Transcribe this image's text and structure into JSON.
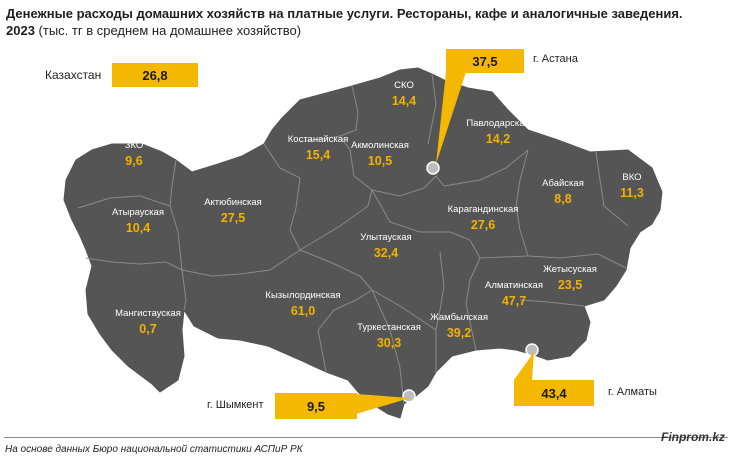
{
  "title": {
    "line1": "Денежные расходы домашних хозяйств на платные услуги. Рестораны, кафе и аналогичные заведения.",
    "line2_bold": "2023",
    "line2_rest": " (тыс. тг в среднем на домашнее хозяйство)"
  },
  "country": {
    "label": "Казахстан",
    "value": "26,8"
  },
  "cities": {
    "astana": {
      "label": "г. Астана",
      "value": "37,5"
    },
    "almaty": {
      "label": "г. Алматы",
      "value": "43,4"
    },
    "shymkent": {
      "label": "г. Шымкент",
      "value": "9,5"
    }
  },
  "regions": [
    {
      "key": "sko",
      "name": "СКО",
      "value": "14,4"
    },
    {
      "key": "pavlodar",
      "name": "Павлодарская",
      "value": "14,2"
    },
    {
      "key": "kostanay",
      "name": "Костанайская",
      "value": "15,4"
    },
    {
      "key": "akmola",
      "name": "Акмолинская",
      "value": "10,5"
    },
    {
      "key": "zko",
      "name": "ЗКО",
      "value": "9,6"
    },
    {
      "key": "vko",
      "name": "ВКО",
      "value": "11,3"
    },
    {
      "key": "abai",
      "name": "Абайская",
      "value": "8,8"
    },
    {
      "key": "atyrau",
      "name": "Атырауская",
      "value": "10,4"
    },
    {
      "key": "aktobe",
      "name": "Актюбинская",
      "value": "27,5"
    },
    {
      "key": "karaganda",
      "name": "Карагандинская",
      "value": "27,6"
    },
    {
      "key": "ulytau",
      "name": "Улытауская",
      "value": "32,4"
    },
    {
      "key": "zhetysu",
      "name": "Жетысуская",
      "value": "23,5"
    },
    {
      "key": "almaty_reg",
      "name": "Алматинская",
      "value": "47,7"
    },
    {
      "key": "mangystau",
      "name": "Мангистауская",
      "value": "0,7"
    },
    {
      "key": "kyzylorda",
      "name": "Кызылординская",
      "value": "61,0"
    },
    {
      "key": "zhambyl",
      "name": "Жамбылская",
      "value": "39,2"
    },
    {
      "key": "turkestan",
      "name": "Туркестанская",
      "value": "30,3"
    }
  ],
  "footer": {
    "source": "На основе данных Бюро национальной статистики АСПиР РК",
    "brand": "Finprom.kz"
  },
  "colors": {
    "region_fill": "#555555",
    "region_border": "#8a8a8a",
    "accent": "#f5b800",
    "value_text": "#f3b100"
  }
}
